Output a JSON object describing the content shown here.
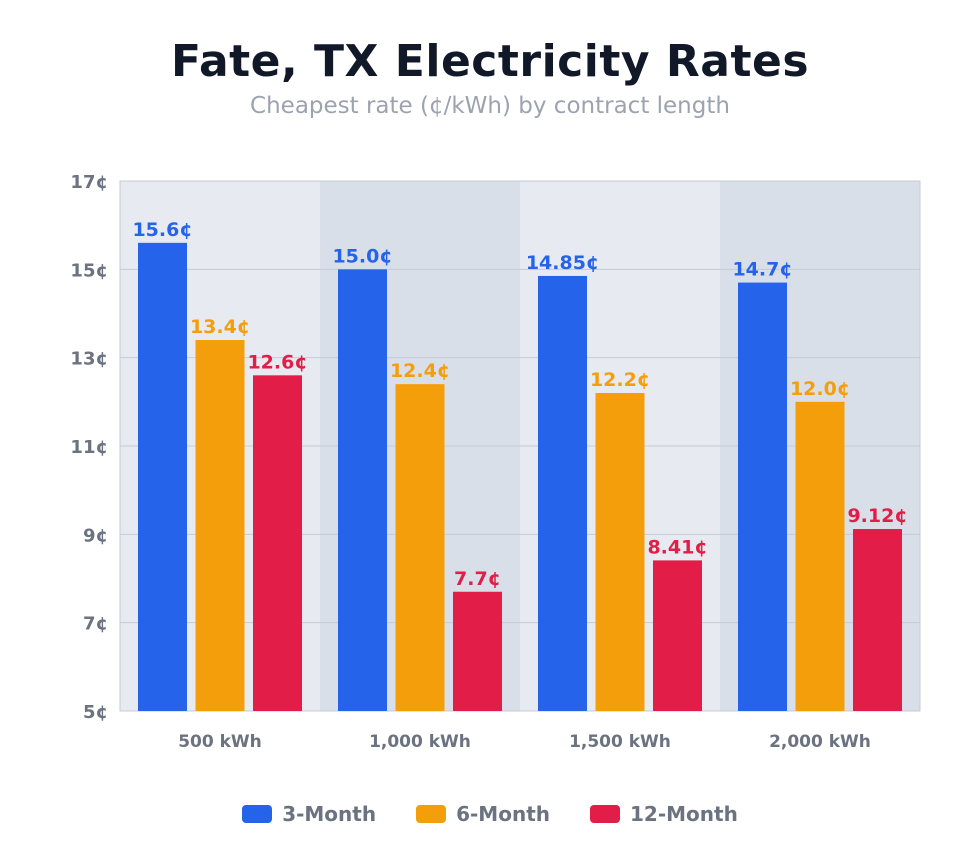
{
  "chart_data": {
    "type": "bar",
    "title": "Fate, TX Electricity Rates",
    "subtitle": "Cheapest rate (¢/kWh) by contract length",
    "categories": [
      "500 kWh",
      "1,000 kWh",
      "1,500 kWh",
      "2,000 kWh"
    ],
    "series": [
      {
        "name": "3-Month",
        "color": "#2563eb",
        "values": [
          15.6,
          15.0,
          14.85,
          14.7
        ],
        "labels": [
          "15.6¢",
          "15.0¢",
          "14.85¢",
          "14.7¢"
        ]
      },
      {
        "name": "6-Month",
        "color": "#f59e0b",
        "values": [
          13.4,
          12.4,
          12.2,
          12.0
        ],
        "labels": [
          "13.4¢",
          "12.4¢",
          "12.2¢",
          "12.0¢"
        ]
      },
      {
        "name": "12-Month",
        "color": "#e11d48",
        "values": [
          12.6,
          7.7,
          8.41,
          9.12
        ],
        "labels": [
          "12.6¢",
          "7.7¢",
          "8.41¢",
          "9.12¢"
        ]
      }
    ],
    "ylim": [
      5,
      17
    ],
    "yticks": [
      5,
      7,
      9,
      11,
      13,
      15,
      17
    ],
    "ytick_labels": [
      "5¢",
      "7¢",
      "9¢",
      "11¢",
      "13¢",
      "15¢",
      "17¢"
    ],
    "grid": true,
    "legend_position": "bottom-center",
    "band_colors": [
      "#e7eaf0",
      "#d9dfe8"
    ]
  }
}
